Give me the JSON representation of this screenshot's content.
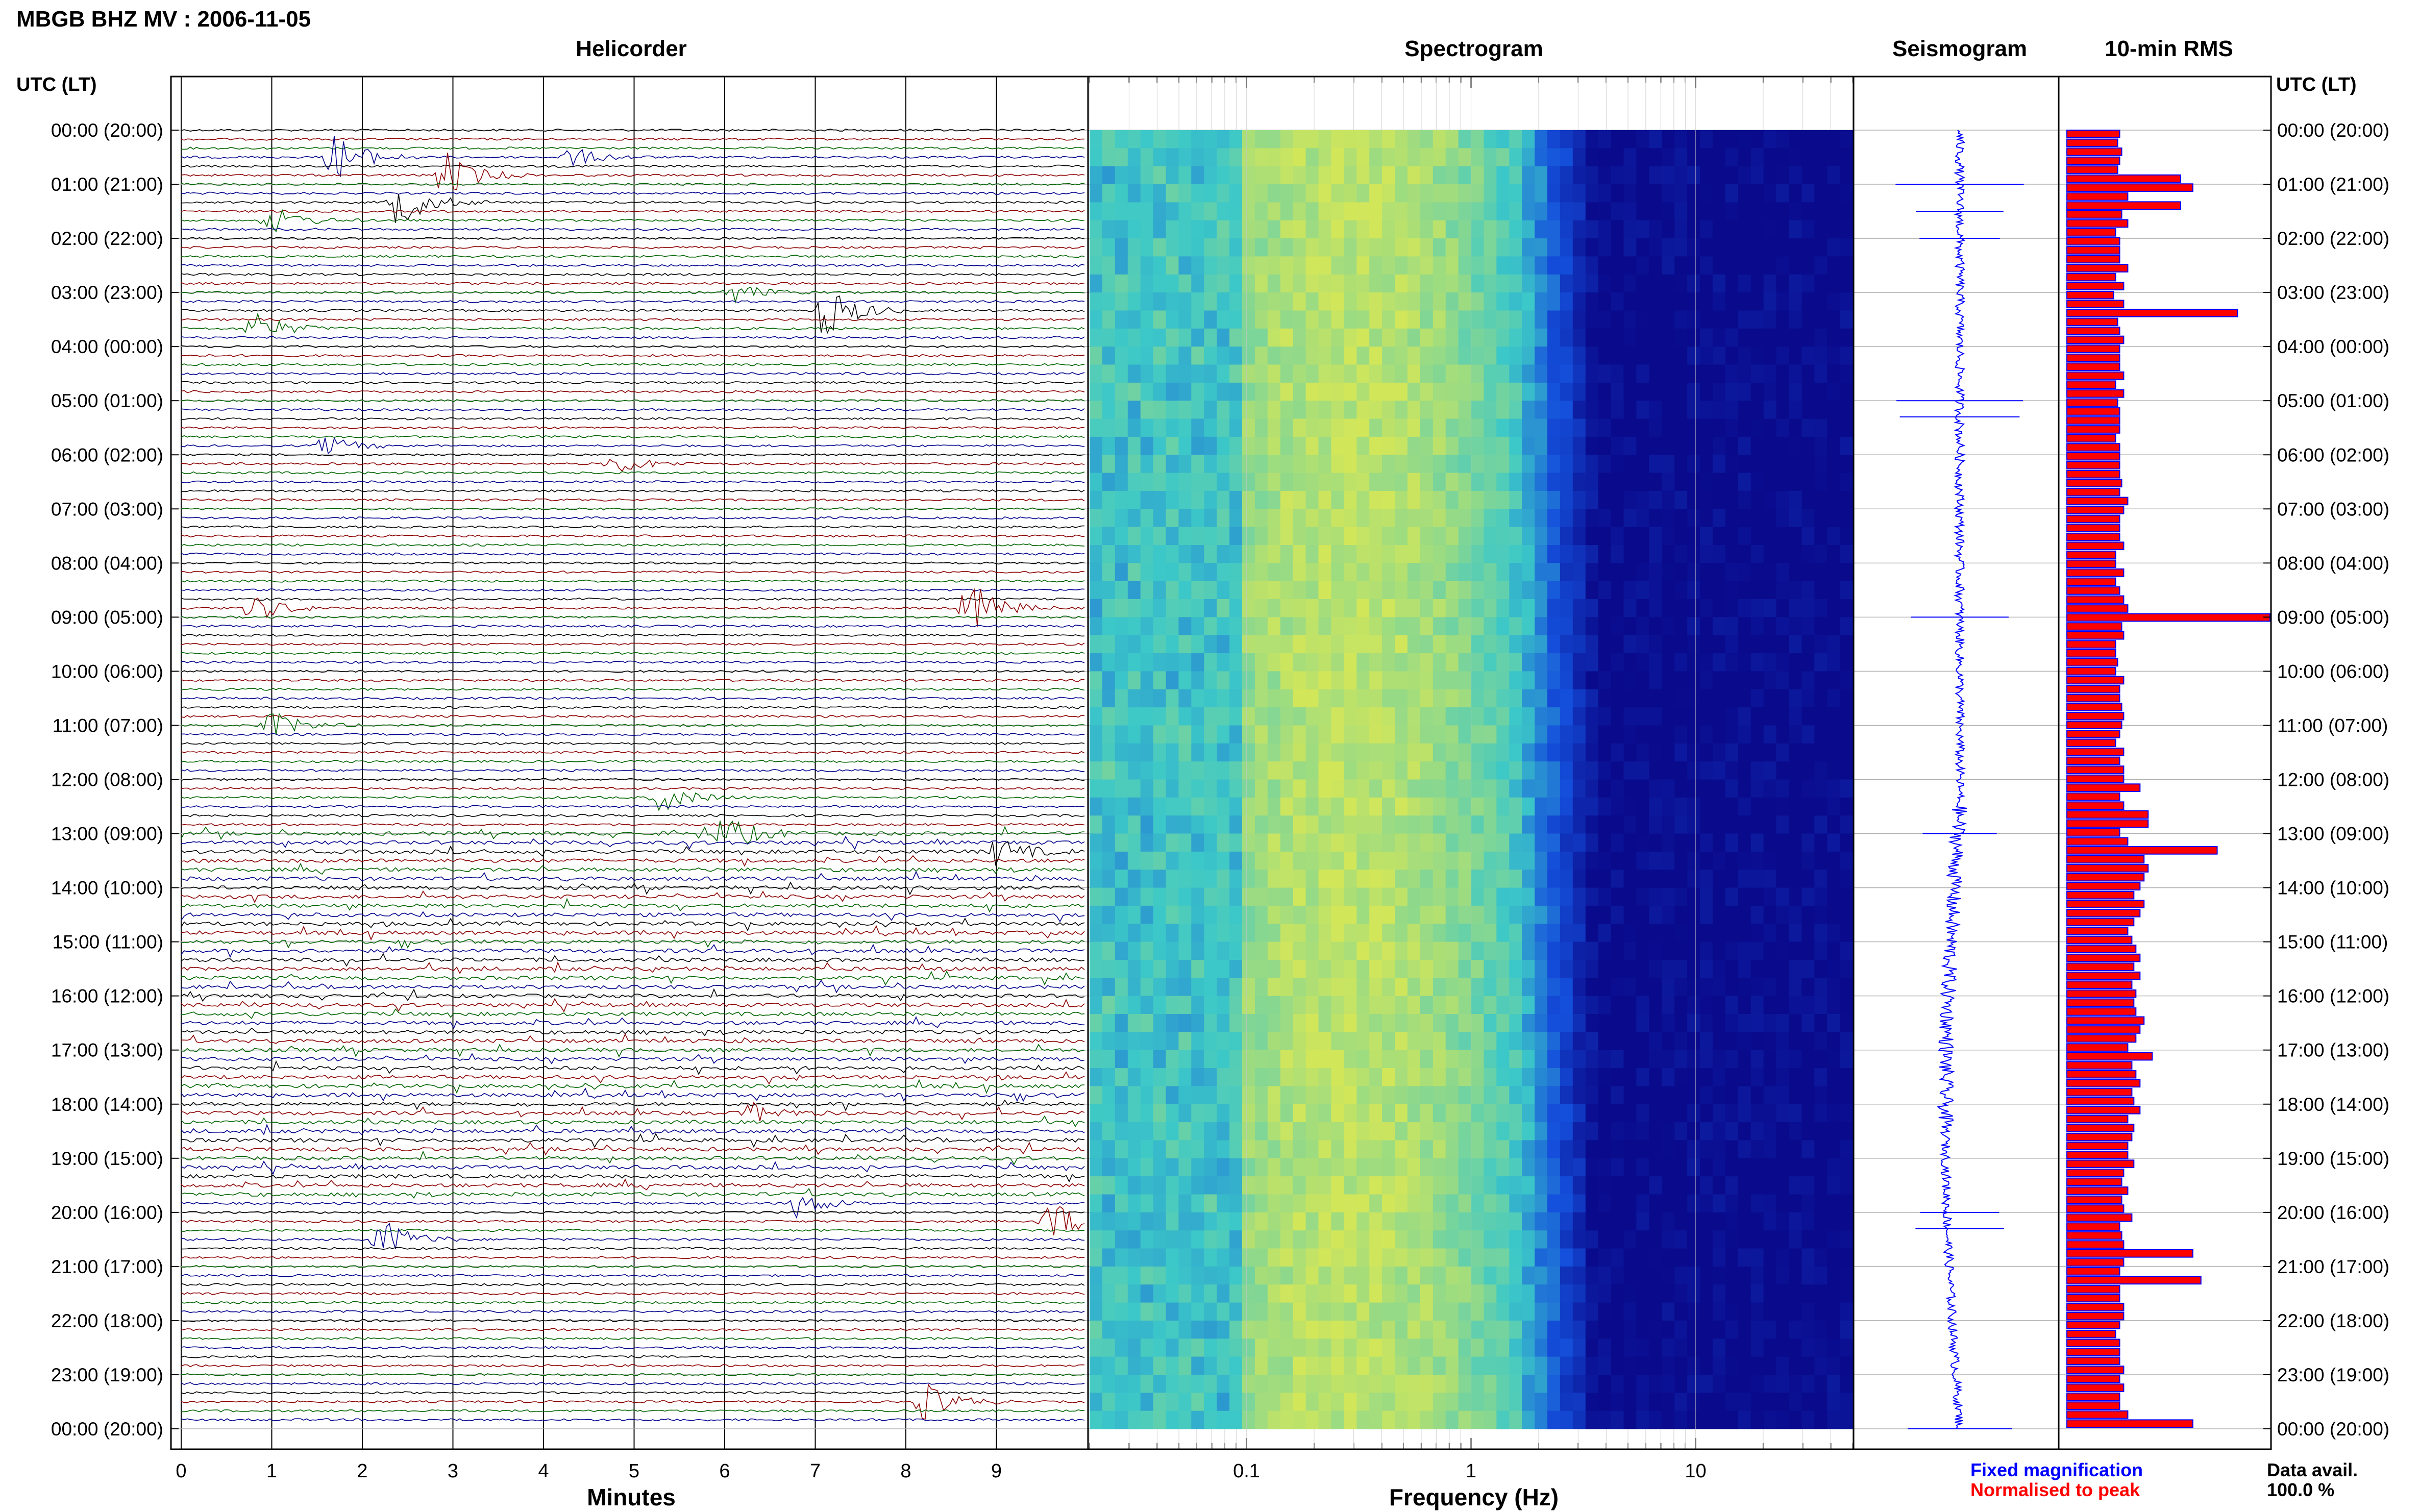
{
  "header": {
    "station_title": "MBGB BHZ MV : 2006-11-05",
    "utc_lt_label": "UTC (LT)"
  },
  "panels": {
    "helicorder_title": "Helicorder",
    "spectrogram_title": "Spectrogram",
    "seismogram_title": "Seismogram",
    "rms_title": "10-min RMS"
  },
  "legend": {
    "fixed": "Fixed magnification",
    "normalised": "Normalised to peak",
    "fixed_color": "#0000ff",
    "normalised_color": "#ff0000",
    "data_avail_label": "Data avail.",
    "data_avail_value": "100.0 %"
  },
  "colors": {
    "trace_cycle": [
      "#000000",
      "#8b0000",
      "#006400",
      "#00008b"
    ],
    "spectrogram_low": "#00008b",
    "spectrogram_mid": "#3cc8c8",
    "spectrogram_high": "#d2e65a",
    "rms_fill": "#ff0000",
    "rms_edge": "#0000ff"
  },
  "chart_data": [
    {
      "type": "line",
      "panel": "helicorder",
      "title": "Helicorder",
      "xlabel": "Minutes",
      "xlim": [
        0,
        10
      ],
      "x_ticks": [
        "0",
        "1",
        "2",
        "3",
        "4",
        "5",
        "6",
        "7",
        "8",
        "9"
      ],
      "y_ticks": [
        "00:00 (20:00)",
        "01:00 (21:00)",
        "02:00 (22:00)",
        "03:00 (23:00)",
        "04:00 (00:00)",
        "05:00 (01:00)",
        "06:00 (02:00)",
        "07:00 (03:00)",
        "08:00 (04:00)",
        "09:00 (05:00)",
        "10:00 (06:00)",
        "11:00 (07:00)",
        "12:00 (08:00)",
        "13:00 (09:00)",
        "14:00 (10:00)",
        "15:00 (11:00)",
        "16:00 (12:00)",
        "17:00 (13:00)",
        "18:00 (14:00)",
        "19:00 (15:00)",
        "20:00 (16:00)",
        "21:00 (17:00)",
        "22:00 (18:00)",
        "23:00 (19:00)",
        "00:00 (20:00)"
      ],
      "rows": 144,
      "events": [
        {
          "row": 3,
          "minute": 1.7,
          "amp": 0.9
        },
        {
          "row": 3,
          "minute": 4.3,
          "amp": 0.35
        },
        {
          "row": 5,
          "minute": 2.9,
          "amp": 0.9
        },
        {
          "row": 8,
          "minute": 2.4,
          "amp": 0.9
        },
        {
          "row": 10,
          "minute": 1.0,
          "amp": 0.5
        },
        {
          "row": 18,
          "minute": 6.1,
          "amp": 0.35
        },
        {
          "row": 20,
          "minute": 7.1,
          "amp": 1.0
        },
        {
          "row": 22,
          "minute": 0.8,
          "amp": 0.6
        },
        {
          "row": 35,
          "minute": 1.6,
          "amp": 0.35
        },
        {
          "row": 37,
          "minute": 4.8,
          "amp": 0.4
        },
        {
          "row": 53,
          "minute": 8.7,
          "amp": 1.0
        },
        {
          "row": 53,
          "minute": 0.8,
          "amp": 0.5
        },
        {
          "row": 66,
          "minute": 1.0,
          "amp": 0.5
        },
        {
          "row": 74,
          "minute": 5.3,
          "amp": 0.5
        },
        {
          "row": 78,
          "minute": 6.0,
          "amp": 0.7
        },
        {
          "row": 80,
          "minute": 9.0,
          "amp": 0.5
        },
        {
          "row": 109,
          "minute": 6.3,
          "amp": 0.35
        },
        {
          "row": 119,
          "minute": 6.8,
          "amp": 0.5
        },
        {
          "row": 121,
          "minute": 9.6,
          "amp": 0.8
        },
        {
          "row": 123,
          "minute": 2.2,
          "amp": 0.8
        },
        {
          "row": 141,
          "minute": 8.2,
          "amp": 0.7
        }
      ]
    },
    {
      "type": "heatmap",
      "panel": "spectrogram",
      "title": "Spectrogram",
      "xlabel": "Frequency (Hz)",
      "x_scale": "log",
      "xlim": [
        0.02,
        50
      ],
      "x_ticks": [
        "0.1",
        "1",
        "10"
      ]
    },
    {
      "type": "line",
      "panel": "seismogram",
      "title": "Seismogram",
      "spikes_hours": [
        1.0,
        1.5,
        2.0,
        5.0,
        5.3,
        9.0,
        13.0,
        20.0,
        20.3,
        24.0
      ]
    },
    {
      "type": "bar",
      "panel": "rms",
      "title": "10-min RMS",
      "orientation": "horizontal",
      "xlim": [
        0,
        1
      ],
      "values": [
        0.26,
        0.25,
        0.27,
        0.26,
        0.25,
        0.56,
        0.62,
        0.3,
        0.56,
        0.27,
        0.3,
        0.24,
        0.26,
        0.26,
        0.26,
        0.3,
        0.24,
        0.28,
        0.23,
        0.28,
        0.84,
        0.25,
        0.26,
        0.28,
        0.26,
        0.26,
        0.26,
        0.28,
        0.24,
        0.28,
        0.25,
        0.26,
        0.26,
        0.26,
        0.24,
        0.26,
        0.26,
        0.26,
        0.26,
        0.27,
        0.26,
        0.3,
        0.28,
        0.26,
        0.26,
        0.26,
        0.28,
        0.24,
        0.24,
        0.28,
        0.24,
        0.26,
        0.28,
        0.3,
        1.0,
        0.27,
        0.28,
        0.24,
        0.24,
        0.25,
        0.24,
        0.28,
        0.26,
        0.26,
        0.27,
        0.28,
        0.27,
        0.26,
        0.24,
        0.28,
        0.26,
        0.28,
        0.28,
        0.36,
        0.26,
        0.28,
        0.4,
        0.4,
        0.26,
        0.3,
        0.74,
        0.38,
        0.4,
        0.38,
        0.36,
        0.33,
        0.38,
        0.36,
        0.33,
        0.3,
        0.32,
        0.34,
        0.36,
        0.33,
        0.36,
        0.32,
        0.34,
        0.33,
        0.34,
        0.38,
        0.36,
        0.34,
        0.3,
        0.42,
        0.32,
        0.34,
        0.36,
        0.32,
        0.33,
        0.36,
        0.3,
        0.33,
        0.32,
        0.3,
        0.3,
        0.33,
        0.28,
        0.27,
        0.3,
        0.27,
        0.28,
        0.32,
        0.26,
        0.27,
        0.28,
        0.62,
        0.28,
        0.26,
        0.66,
        0.26,
        0.26,
        0.28,
        0.28,
        0.26,
        0.24,
        0.26,
        0.26,
        0.26,
        0.28,
        0.26,
        0.28,
        0.26,
        0.26,
        0.3,
        0.62
      ]
    }
  ]
}
